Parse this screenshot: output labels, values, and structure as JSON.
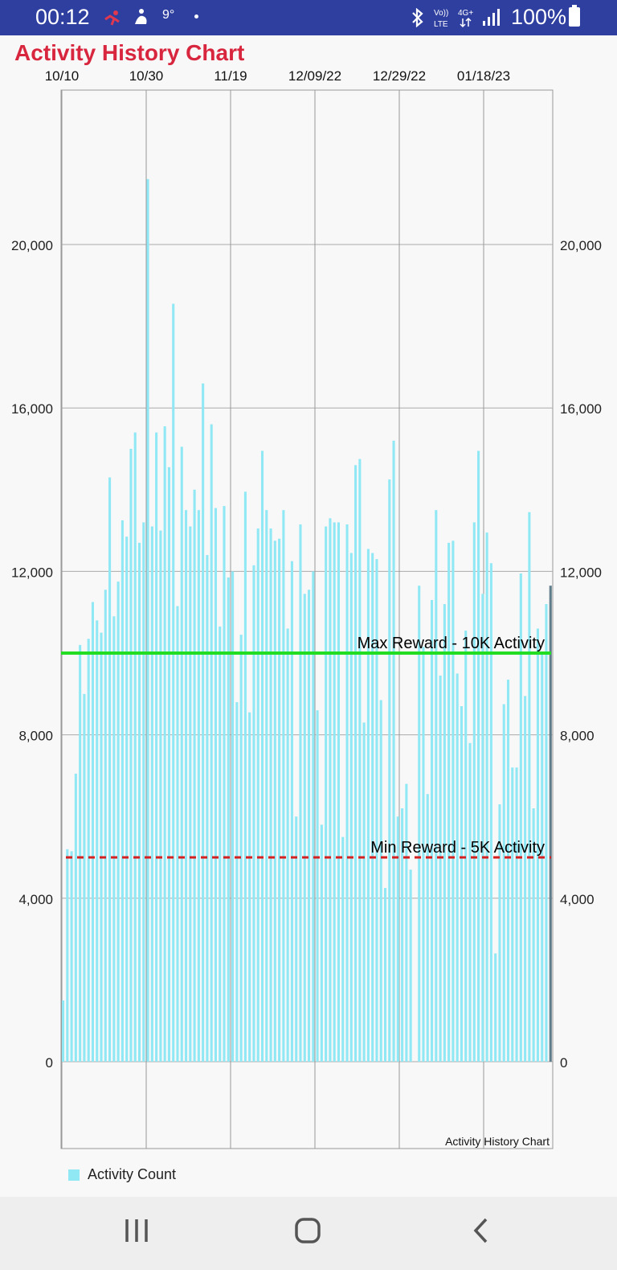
{
  "status_bar": {
    "time": "00:12",
    "temperature": "9°",
    "battery": "100%",
    "icons": [
      "activity-icon",
      "fitness-icon",
      "bluetooth-icon",
      "volte-icon",
      "4g-icon",
      "signal-icon",
      "battery-icon"
    ]
  },
  "app": {
    "title": "Activity History Chart"
  },
  "legend": {
    "label": "Activity Count"
  },
  "colors": {
    "bar": "#90e8f5",
    "max_line": "#22dd22",
    "min_line": "#d42020",
    "title": "#d8263e",
    "last_bar": "#607d8b"
  },
  "nav_bar": {
    "icons": [
      "recents-icon",
      "home-icon",
      "back-icon"
    ]
  },
  "chart_data": {
    "type": "bar",
    "title": "Activity History Chart",
    "xlabel": "",
    "ylabel": "",
    "x_ticks": [
      "10/10",
      "10/30",
      "11/19",
      "12/09/22",
      "12/29/22",
      "01/18/23"
    ],
    "y_ticks": [
      "0",
      "4,000",
      "8,000",
      "12,000",
      "16,000",
      "20,000"
    ],
    "ylim": [
      -2000,
      24000
    ],
    "grid": true,
    "legend_position": "bottom-left",
    "series": [
      {
        "name": "Activity Count",
        "values": [
          1500,
          5200,
          5150,
          7050,
          10200,
          9000,
          10350,
          11250,
          10800,
          10500,
          11550,
          14300,
          10900,
          11750,
          13250,
          12850,
          15000,
          15400,
          12700,
          13200,
          21600,
          13100,
          15400,
          13000,
          15550,
          14550,
          18550,
          11150,
          15050,
          13500,
          13100,
          14000,
          13500,
          16600,
          12400,
          15600,
          13550,
          10650,
          13600,
          11850,
          12000,
          8800,
          10450,
          13950,
          8550,
          12150,
          13050,
          14950,
          13500,
          13050,
          12750,
          12800,
          13500,
          10600,
          12250,
          6000,
          13150,
          11450,
          11550,
          12000,
          8600,
          5800,
          13100,
          13300,
          13200,
          13200,
          5500,
          13150,
          12450,
          14600,
          14750,
          8300,
          12550,
          12450,
          12300,
          8850,
          4250,
          14250,
          15200,
          6000,
          6200,
          6800,
          4700,
          0,
          11650,
          10150,
          6550,
          11300,
          13500,
          9450,
          11200,
          12700,
          12750,
          9500,
          8700,
          10550,
          7800,
          13200,
          14950,
          11450,
          12950,
          12200,
          2650,
          6300,
          8750,
          9350,
          7200,
          7200,
          11950,
          8950,
          13450,
          6200,
          10600,
          10000,
          11200,
          11650
        ]
      }
    ],
    "annotations": [
      {
        "label": "Max Reward - 10K Activity",
        "y": 10000,
        "style": "solid"
      },
      {
        "label": "Min Reward - 5K Activity",
        "y": 5000,
        "style": "dashed"
      }
    ],
    "caption": "Activity History Chart"
  }
}
